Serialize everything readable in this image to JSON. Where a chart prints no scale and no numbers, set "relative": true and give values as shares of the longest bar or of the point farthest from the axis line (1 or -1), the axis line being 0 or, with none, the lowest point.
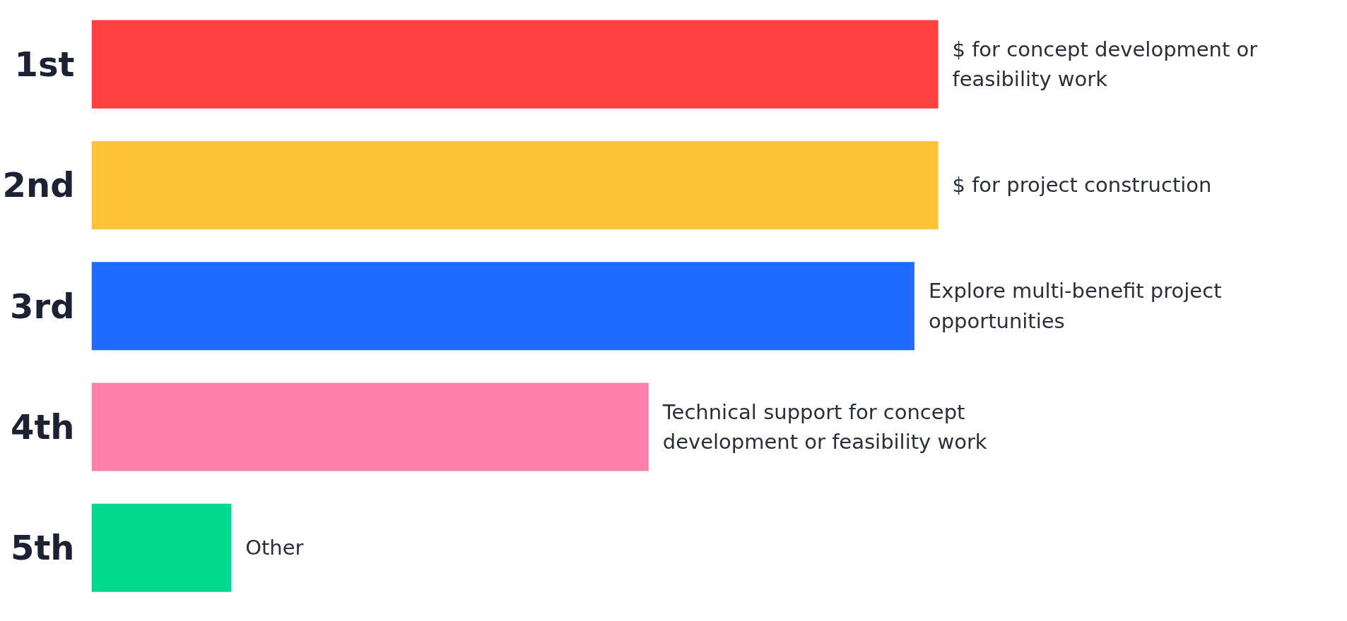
{
  "chart_data": {
    "type": "bar",
    "orientation": "horizontal",
    "relative": true,
    "categories": [
      "1st",
      "2nd",
      "3rd",
      "4th",
      "5th"
    ],
    "values": [
      1,
      1,
      0.972,
      0.658,
      0.165
    ],
    "colors": [
      "#ff4040",
      "#fec436",
      "#1f6bff",
      "#ff80aa",
      "#00d98e"
    ],
    "annotations": [
      {
        "text": "$ for concept development or\nfeasibility work",
        "x": 1,
        "y": "1st"
      },
      {
        "text": "$ for project construction",
        "x": 1,
        "y": "2nd"
      },
      {
        "text": "Explore multi-benefit project\nopportunities",
        "x": 0.972,
        "y": "3rd"
      },
      {
        "text": "Technical support for concept\ndevelopment or feasibility work",
        "x": 0.658,
        "y": "4th"
      },
      {
        "text": "Other",
        "x": 0.165,
        "y": "5th"
      }
    ]
  }
}
